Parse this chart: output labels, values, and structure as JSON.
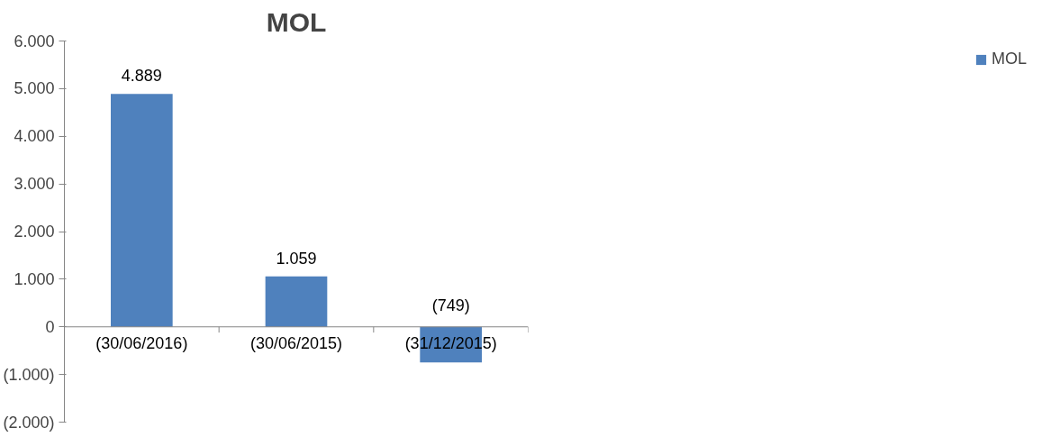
{
  "chart_data": {
    "type": "bar",
    "title": "MOL",
    "categories": [
      "(30/06/2016)",
      "(30/06/2015)",
      "(31/12/2015)"
    ],
    "series": [
      {
        "name": "MOL",
        "color": "#4f81bd",
        "values": [
          4889,
          1059,
          -749
        ],
        "value_labels": [
          "4.889",
          "1.059",
          "(749)"
        ]
      }
    ],
    "ylim": [
      -2000,
      6000
    ],
    "yticks": [
      {
        "value": -2000,
        "label": "(2.000)"
      },
      {
        "value": -1000,
        "label": "(1.000)"
      },
      0,
      {
        "value": 1000,
        "label": "1.000"
      },
      {
        "value": 2000,
        "label": "2.000"
      },
      {
        "value": 3000,
        "label": "3.000"
      },
      {
        "value": 4000,
        "label": "4.000"
      },
      {
        "value": 5000,
        "label": "5.000"
      },
      {
        "value": 6000,
        "label": "6.000"
      }
    ],
    "grid": false,
    "legend": "right"
  }
}
